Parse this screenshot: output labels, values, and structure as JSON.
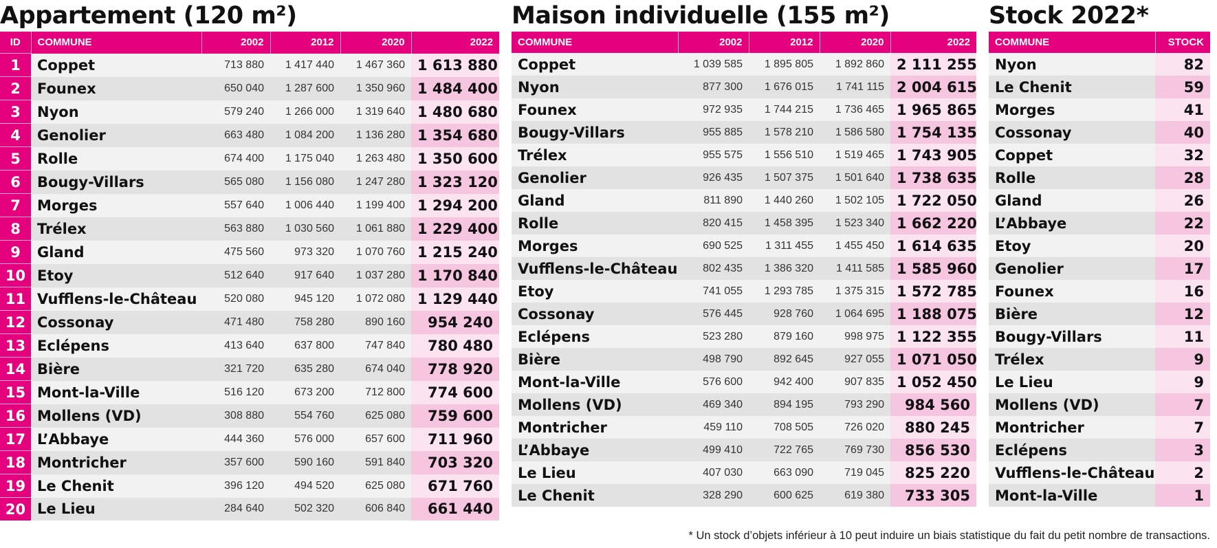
{
  "sections": {
    "appartement": {
      "title": "Appartement (120 m²)",
      "headers": {
        "id": "ID",
        "commune": "COMMUNE",
        "y2002": "2002",
        "y2012": "2012",
        "y2020": "2020",
        "y2022": "2022"
      },
      "rows": [
        {
          "id": "1",
          "name": "Coppet",
          "y2002": "713 880",
          "y2012": "1 417 440",
          "y2020": "1 467 360",
          "y2022": "1 613 880"
        },
        {
          "id": "2",
          "name": "Founex",
          "y2002": "650 040",
          "y2012": "1 287 600",
          "y2020": "1 350 960",
          "y2022": "1 484 400"
        },
        {
          "id": "3",
          "name": "Nyon",
          "y2002": "579 240",
          "y2012": "1 266 000",
          "y2020": "1 319 640",
          "y2022": "1 480 680"
        },
        {
          "id": "4",
          "name": "Genolier",
          "y2002": "663 480",
          "y2012": "1 084 200",
          "y2020": "1 136 280",
          "y2022": "1 354 680"
        },
        {
          "id": "5",
          "name": "Rolle",
          "y2002": "674 400",
          "y2012": "1 175 040",
          "y2020": "1 263 480",
          "y2022": "1 350 600"
        },
        {
          "id": "6",
          "name": "Bougy-Villars",
          "y2002": "565 080",
          "y2012": "1 156 080",
          "y2020": "1 247 280",
          "y2022": "1 323 120"
        },
        {
          "id": "7",
          "name": "Morges",
          "y2002": "557 640",
          "y2012": "1 006 440",
          "y2020": "1 199 400",
          "y2022": "1 294 200"
        },
        {
          "id": "8",
          "name": "Trélex",
          "y2002": "563 880",
          "y2012": "1 030 560",
          "y2020": "1 061 880",
          "y2022": "1 229 400"
        },
        {
          "id": "9",
          "name": "Gland",
          "y2002": "475 560",
          "y2012": "973 320",
          "y2020": "1 070 760",
          "y2022": "1 215 240"
        },
        {
          "id": "10",
          "name": "Etoy",
          "y2002": "512 640",
          "y2012": "917 640",
          "y2020": "1 037 280",
          "y2022": "1 170 840"
        },
        {
          "id": "11",
          "name": "Vufflens-le-Château",
          "y2002": "520 080",
          "y2012": "945 120",
          "y2020": "1 072 080",
          "y2022": "1 129 440"
        },
        {
          "id": "12",
          "name": "Cossonay",
          "y2002": "471 480",
          "y2012": "758 280",
          "y2020": "890 160",
          "y2022": "954 240"
        },
        {
          "id": "13",
          "name": "Eclépens",
          "y2002": "413 640",
          "y2012": "637 800",
          "y2020": "747 840",
          "y2022": "780 480"
        },
        {
          "id": "14",
          "name": "Bière",
          "y2002": "321 720",
          "y2012": "635 280",
          "y2020": "674 040",
          "y2022": "778 920"
        },
        {
          "id": "15",
          "name": "Mont-la-Ville",
          "y2002": "516 120",
          "y2012": "673 200",
          "y2020": "712 800",
          "y2022": "774 600"
        },
        {
          "id": "16",
          "name": "Mollens (VD)",
          "y2002": "308 880",
          "y2012": "554 760",
          "y2020": "625 080",
          "y2022": "759 600"
        },
        {
          "id": "17",
          "name": "L’Abbaye",
          "y2002": "444 360",
          "y2012": "576 000",
          "y2020": "657 600",
          "y2022": "711 960"
        },
        {
          "id": "18",
          "name": "Montricher",
          "y2002": "357 600",
          "y2012": "590 160",
          "y2020": "591 840",
          "y2022": "703 320"
        },
        {
          "id": "19",
          "name": "Le Chenit",
          "y2002": "396 120",
          "y2012": "494 520",
          "y2020": "625 080",
          "y2022": "671 760"
        },
        {
          "id": "20",
          "name": "Le Lieu",
          "y2002": "284 640",
          "y2012": "502 320",
          "y2020": "606 840",
          "y2022": "661 440"
        }
      ]
    },
    "maison": {
      "title": "Maison individuelle (155 m²)",
      "headers": {
        "commune": "COMMUNE",
        "y2002": "2002",
        "y2012": "2012",
        "y2020": "2020",
        "y2022": "2022"
      },
      "rows": [
        {
          "name": "Coppet",
          "y2002": "1 039 585",
          "y2012": "1 895 805",
          "y2020": "1 892 860",
          "y2022": "2 111 255"
        },
        {
          "name": "Nyon",
          "y2002": "877 300",
          "y2012": "1 676 015",
          "y2020": "1 741 115",
          "y2022": "2 004 615"
        },
        {
          "name": "Founex",
          "y2002": "972 935",
          "y2012": "1 744 215",
          "y2020": "1 736 465",
          "y2022": "1 965 865"
        },
        {
          "name": "Bougy-Villars",
          "y2002": "955 885",
          "y2012": "1 578 210",
          "y2020": "1 586 580",
          "y2022": "1 754 135"
        },
        {
          "name": "Trélex",
          "y2002": "955 575",
          "y2012": "1 556 510",
          "y2020": "1 519 465",
          "y2022": "1 743 905"
        },
        {
          "name": "Genolier",
          "y2002": "926 435",
          "y2012": "1 507 375",
          "y2020": "1 501 640",
          "y2022": "1 738 635"
        },
        {
          "name": "Gland",
          "y2002": "811 890",
          "y2012": "1 440 260",
          "y2020": "1 502 105",
          "y2022": "1 722 050"
        },
        {
          "name": "Rolle",
          "y2002": "820 415",
          "y2012": "1 458 395",
          "y2020": "1 523 340",
          "y2022": "1 662 220"
        },
        {
          "name": "Morges",
          "y2002": "690 525",
          "y2012": "1 311 455",
          "y2020": "1 455 450",
          "y2022": "1 614 635"
        },
        {
          "name": "Vufflens-le-Château",
          "y2002": "802 435",
          "y2012": "1 386 320",
          "y2020": "1 411 585",
          "y2022": "1 585 960"
        },
        {
          "name": "Etoy",
          "y2002": "741 055",
          "y2012": "1 293 785",
          "y2020": "1 375 315",
          "y2022": "1 572 785"
        },
        {
          "name": "Cossonay",
          "y2002": "576 445",
          "y2012": "928 760",
          "y2020": "1 064 695",
          "y2022": "1 188 075"
        },
        {
          "name": "Eclépens",
          "y2002": "523 280",
          "y2012": "879 160",
          "y2020": "998 975",
          "y2022": "1 122 355"
        },
        {
          "name": "Bière",
          "y2002": "498 790",
          "y2012": "892 645",
          "y2020": "927 055",
          "y2022": "1 071 050"
        },
        {
          "name": "Mont-la-Ville",
          "y2002": "576 600",
          "y2012": "942 400",
          "y2020": "907 835",
          "y2022": "1 052 450"
        },
        {
          "name": "Mollens (VD)",
          "y2002": "469 340",
          "y2012": "894 195",
          "y2020": "793 290",
          "y2022": "984 560"
        },
        {
          "name": "Montricher",
          "y2002": "459 110",
          "y2012": "708 505",
          "y2020": "726 020",
          "y2022": "880 245"
        },
        {
          "name": "L’Abbaye",
          "y2002": "499 410",
          "y2012": "722 765",
          "y2020": "769 730",
          "y2022": "856 530"
        },
        {
          "name": "Le Lieu",
          "y2002": "407 030",
          "y2012": "663 090",
          "y2020": "719 045",
          "y2022": "825 220"
        },
        {
          "name": "Le Chenit",
          "y2002": "328 290",
          "y2012": "600 625",
          "y2020": "619 380",
          "y2022": "733 305"
        }
      ]
    },
    "stock": {
      "title": "Stock 2022*",
      "headers": {
        "commune": "COMMUNE",
        "stock": "STOCK"
      },
      "rows": [
        {
          "name": "Nyon",
          "stock": "82"
        },
        {
          "name": "Le Chenit",
          "stock": "59"
        },
        {
          "name": "Morges",
          "stock": "41"
        },
        {
          "name": "Cossonay",
          "stock": "40"
        },
        {
          "name": "Coppet",
          "stock": "32"
        },
        {
          "name": "Rolle",
          "stock": "28"
        },
        {
          "name": "Gland",
          "stock": "26"
        },
        {
          "name": "L’Abbaye",
          "stock": "22"
        },
        {
          "name": "Etoy",
          "stock": "20"
        },
        {
          "name": "Genolier",
          "stock": "17"
        },
        {
          "name": "Founex",
          "stock": "16"
        },
        {
          "name": "Bière",
          "stock": "12"
        },
        {
          "name": "Bougy-Villars",
          "stock": "11"
        },
        {
          "name": "Trélex",
          "stock": "9"
        },
        {
          "name": "Le Lieu",
          "stock": "9"
        },
        {
          "name": "Mollens (VD)",
          "stock": "7"
        },
        {
          "name": "Montricher",
          "stock": "7"
        },
        {
          "name": "Eclépens",
          "stock": "3"
        },
        {
          "name": "Vufflens-le-Château",
          "stock": "2"
        },
        {
          "name": "Mont-la-Ville",
          "stock": "1"
        }
      ]
    }
  },
  "footnote": "* Un stock d’objets inférieur à 10 peut induire un biais statistique du fait du petit nombre de transactions.",
  "colors": {
    "accent": "#e5007d",
    "highlight_light": "#fbe3f0",
    "highlight_dark": "#f6c6e0",
    "row_light": "#f2f2f2",
    "row_dark": "#e2e2e2"
  }
}
